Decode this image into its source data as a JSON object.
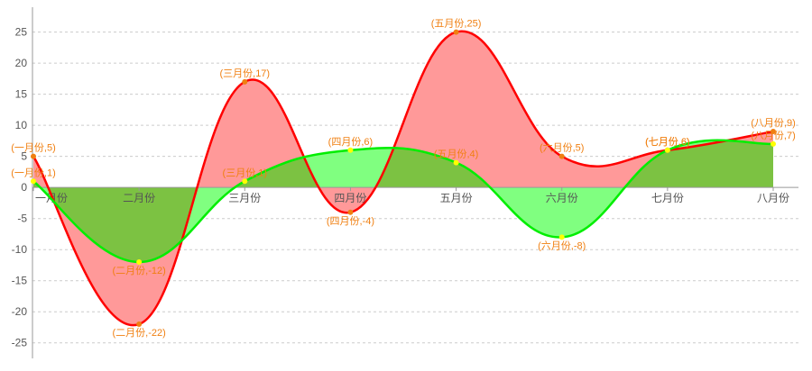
{
  "chart_data": {
    "type": "area",
    "categories": [
      "一月份",
      "二月份",
      "三月份",
      "四月份",
      "五月份",
      "六月份",
      "七月份",
      "八月份"
    ],
    "series": [
      {
        "values": [
          5,
          -22,
          17,
          -4,
          25,
          5,
          6,
          9
        ],
        "line_color": "#ff0000",
        "fill_color": "#ff9999",
        "label_color": "#f07f10",
        "point_color": "#f07f10"
      },
      {
        "values": [
          1,
          -12,
          1,
          6,
          4,
          -8,
          6,
          7
        ],
        "line_color": "#00ee00",
        "fill_color": "#80ff80",
        "overlap_fill_color": "#7cc242",
        "label_color": "#f07f10",
        "point_color": "#ffff00"
      }
    ],
    "y_ticks": [
      25,
      20,
      15,
      10,
      5,
      0,
      -5,
      -10,
      -15,
      -20,
      -25
    ],
    "ylim": [
      -27.5,
      29
    ],
    "grid": "horizontal dashed",
    "title": "",
    "xlabel": "",
    "ylabel": ""
  },
  "colors": {
    "axis": "#999999",
    "grid": "#cccccc",
    "tick_text": "#555555"
  }
}
